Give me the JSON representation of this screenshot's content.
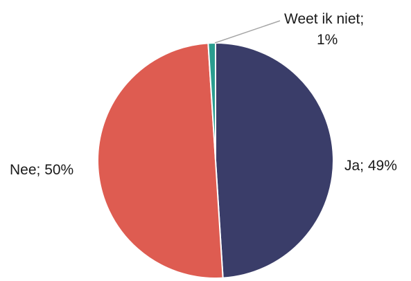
{
  "chart_data": {
    "type": "pie",
    "slices": [
      {
        "label": "Ja",
        "value": 49,
        "color": "#3a3d69",
        "label_text": "Ja; 49%"
      },
      {
        "label": "Nee",
        "value": 50,
        "color": "#de5c51",
        "label_text": "Nee; 50%"
      },
      {
        "label": "Weet ik niet",
        "value": 1,
        "color": "#2a9d8f",
        "label_text_lines": [
          "Weet ik niet;",
          "1%"
        ]
      }
    ],
    "legend": "none",
    "leader_line_color": "#a6a6a6"
  }
}
